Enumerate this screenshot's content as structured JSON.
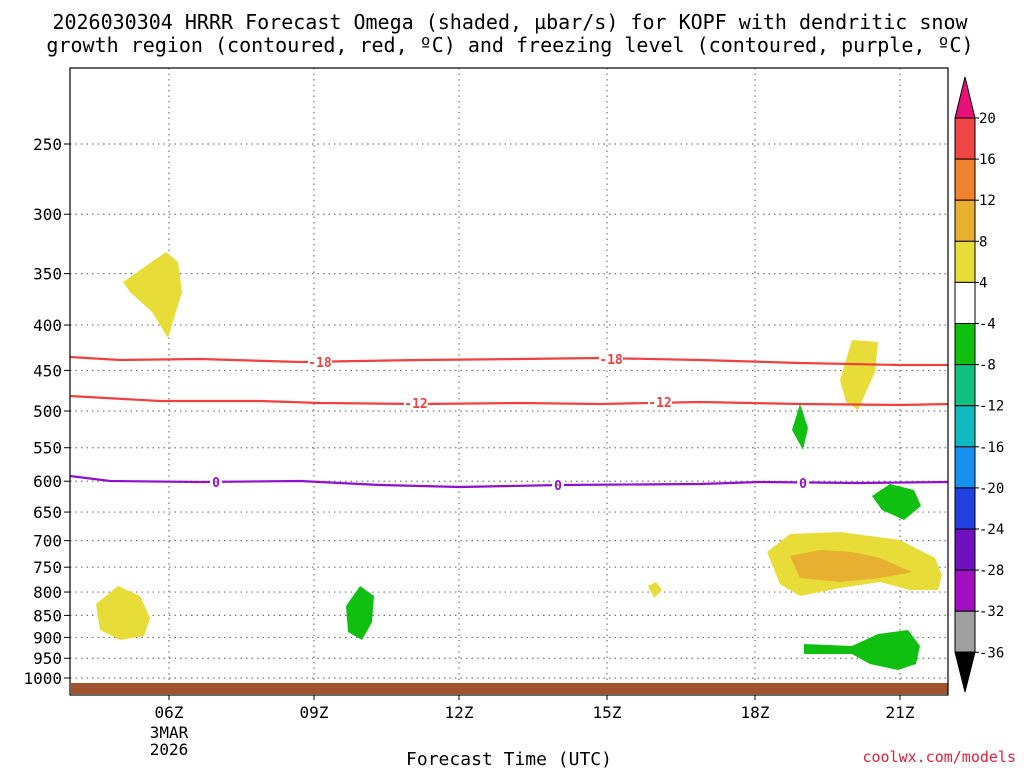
{
  "title_line1": "2026030304 HRRR Forecast Omega (shaded, µbar/s) for KOPF with dendritic snow",
  "title_line2": "growth region (contoured, red, ºC) and freezing level (contoured, purple, ºC)",
  "credit": "coolwx.com/models",
  "chart_data": {
    "type": "time-height",
    "xlabel": "Forecast Time (UTC)",
    "ylabel": "",
    "x_ticks": [
      "06Z",
      "09Z",
      "12Z",
      "15Z",
      "18Z",
      "21Z"
    ],
    "x_tick_date": [
      "3MAR",
      "2026"
    ],
    "y_ticks": [
      250,
      300,
      350,
      400,
      450,
      500,
      550,
      600,
      650,
      700,
      750,
      800,
      850,
      900,
      950,
      1000
    ],
    "y_scale": "log-pressure",
    "grid": true,
    "colorbar": {
      "labels": [
        "20",
        "16",
        "12",
        "8",
        "4",
        "-4",
        "-8",
        "-12",
        "-16",
        "-20",
        "-24",
        "-28",
        "-32",
        "-36"
      ],
      "colors": [
        "#e8107a",
        "#f04545",
        "#f08230",
        "#e8b030",
        "#e8dc38",
        "#ffffff",
        "#10c010",
        "#10c080",
        "#10b8c0",
        "#1890f0",
        "#2040e0",
        "#7010c0",
        "#a010c0",
        "#a0a0a0",
        "#000000"
      ]
    },
    "contours": [
      {
        "name": "-18",
        "color": "#f04040",
        "labels": [
          "-18",
          "-18"
        ]
      },
      {
        "name": "-12",
        "color": "#f04040",
        "labels": [
          "-12",
          "-12"
        ]
      },
      {
        "name": "0",
        "color": "#9010d0",
        "labels": [
          "0",
          "0",
          "0"
        ]
      }
    ],
    "ground_color": "#a0522d"
  }
}
